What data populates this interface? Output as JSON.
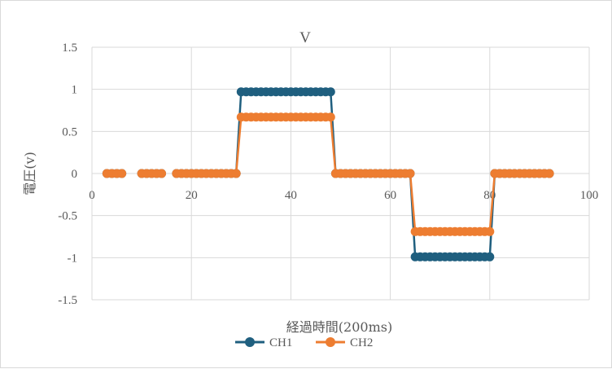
{
  "chart_data": {
    "type": "scatter",
    "title": "V",
    "xlabel": "経過時間(200ms)",
    "ylabel": "電圧(v)",
    "xlim": [
      0,
      100
    ],
    "ylim": [
      -1.5,
      1.5
    ],
    "x_ticks": [
      "0",
      "20",
      "40",
      "60",
      "80",
      "100"
    ],
    "y_ticks": [
      "1.5",
      "1",
      "0.5",
      "0",
      "-0.5",
      "-1",
      "-1.5"
    ],
    "grid": true,
    "legend_position": "bottom",
    "colors": {
      "CH1": "#1f5f7f",
      "CH2": "#ed7d31",
      "grid": "#d9d9d9",
      "text": "#595959"
    },
    "segments": [
      [
        3,
        6
      ],
      [
        10,
        14
      ],
      [
        17,
        92
      ]
    ],
    "series": [
      {
        "name": "CH1",
        "levels": [
          {
            "from": 3,
            "to": 29,
            "y": 0
          },
          {
            "from": 30,
            "to": 48,
            "y": 0.97
          },
          {
            "from": 49,
            "to": 64,
            "y": 0
          },
          {
            "from": 65,
            "to": 80,
            "y": -0.99
          },
          {
            "from": 81,
            "to": 92,
            "y": 0
          }
        ]
      },
      {
        "name": "CH2",
        "levels": [
          {
            "from": 3,
            "to": 29,
            "y": 0
          },
          {
            "from": 30,
            "to": 48,
            "y": 0.67
          },
          {
            "from": 49,
            "to": 64,
            "y": 0
          },
          {
            "from": 65,
            "to": 80,
            "y": -0.69
          },
          {
            "from": 81,
            "to": 92,
            "y": 0
          }
        ]
      }
    ]
  }
}
